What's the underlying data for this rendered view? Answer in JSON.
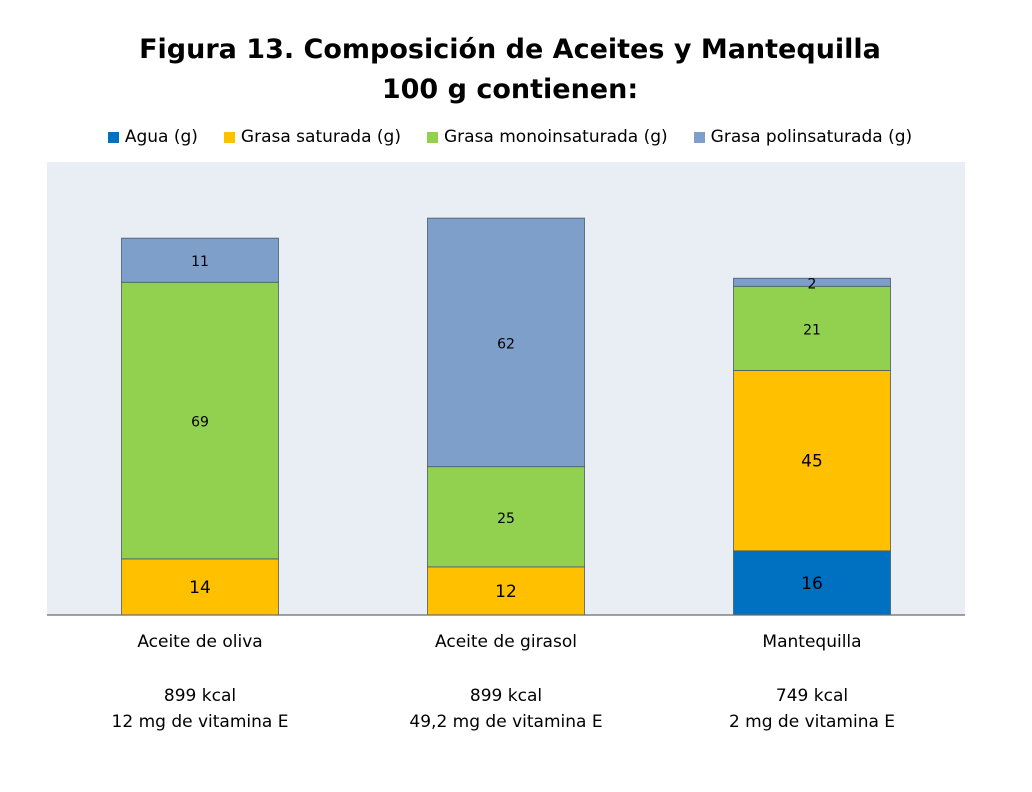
{
  "chart_data": {
    "type": "bar",
    "stacked": true,
    "title": "Figura 13. Composición de Aceites y Mantequilla",
    "subtitle": "100 g contienen:",
    "categories": [
      "Aceite de oliva",
      "Aceite de girasol",
      "Mantequilla"
    ],
    "category_notes": [
      [
        "899 kcal",
        "12 mg de vitamina E"
      ],
      [
        "899 kcal",
        "49,2 mg de vitamina E"
      ],
      [
        "749 kcal",
        "2 mg de vitamina E"
      ]
    ],
    "series": [
      {
        "name": "Agua (g)",
        "color": "#0070C0",
        "values": [
          0,
          0,
          16
        ]
      },
      {
        "name": "Grasa saturada (g)",
        "color": "#FFC000",
        "values": [
          14,
          12,
          45
        ]
      },
      {
        "name": "Grasa monoinsaturada (g)",
        "color": "#92D050",
        "values": [
          69,
          25,
          21
        ]
      },
      {
        "name": "Grasa polinsaturada (g)",
        "color": "#7F9FCB",
        "values": [
          11,
          62,
          2
        ]
      }
    ],
    "ylim": [
      0,
      113
    ],
    "legend_position": "top",
    "plot_background": "#E9EDF4"
  }
}
